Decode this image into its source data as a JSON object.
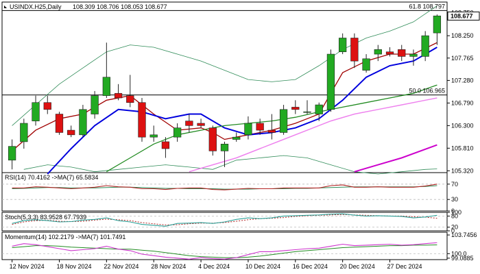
{
  "chart_data": {
    "type": "candlestick",
    "instrument": "USINDX.H25,Daily",
    "ohlc_header": "108.309 108.706 108.053 108.677",
    "current_price": "108.677",
    "fib_levels": [
      {
        "label": "61.8 108.797",
        "value": 108.797
      },
      {
        "label": "50.0 106.965",
        "value": 106.965
      }
    ],
    "price_axis": {
      "ticks": [
        "108.750",
        "108.250",
        "107.765",
        "107.280",
        "106.790",
        "106.300",
        "105.810",
        "105.320"
      ],
      "ylim": [
        105.28,
        108.98
      ]
    },
    "x_axis": {
      "labels": [
        {
          "text": "12 Nov 2024",
          "index": 0
        },
        {
          "text": "18 Nov 2024",
          "index": 4
        },
        {
          "text": "22 Nov 2024",
          "index": 8
        },
        {
          "text": "28 Nov 2024",
          "index": 12
        },
        {
          "text": "4 Dec 2024",
          "index": 16
        },
        {
          "text": "10 Dec 2024",
          "index": 20
        },
        {
          "text": "16 Dec 2024",
          "index": 24
        },
        {
          "text": "20 Dec 2024",
          "index": 28
        },
        {
          "text": "27 Dec 2024",
          "index": 32
        }
      ]
    },
    "candles": [
      {
        "o": 105.55,
        "h": 106.0,
        "l": 105.35,
        "c": 105.85
      },
      {
        "o": 105.95,
        "h": 106.45,
        "l": 105.8,
        "c": 106.35
      },
      {
        "o": 106.4,
        "h": 106.95,
        "l": 106.3,
        "c": 106.8
      },
      {
        "o": 106.8,
        "h": 106.95,
        "l": 106.55,
        "c": 106.65
      },
      {
        "o": 106.55,
        "h": 106.6,
        "l": 106.1,
        "c": 106.15
      },
      {
        "o": 106.2,
        "h": 106.3,
        "l": 106.05,
        "c": 106.1
      },
      {
        "o": 106.1,
        "h": 106.75,
        "l": 106.05,
        "c": 106.65
      },
      {
        "o": 106.55,
        "h": 107.05,
        "l": 106.45,
        "c": 106.95
      },
      {
        "o": 106.95,
        "h": 108.1,
        "l": 106.9,
        "c": 107.35
      },
      {
        "o": 107.0,
        "h": 107.2,
        "l": 106.85,
        "c": 106.9
      },
      {
        "o": 106.95,
        "h": 107.4,
        "l": 106.7,
        "c": 106.8
      },
      {
        "o": 106.8,
        "h": 106.9,
        "l": 105.95,
        "c": 106.05
      },
      {
        "o": 106.05,
        "h": 106.3,
        "l": 105.95,
        "c": 106.1
      },
      {
        "o": 105.95,
        "h": 106.05,
        "l": 105.6,
        "c": 105.8
      },
      {
        "o": 106.05,
        "h": 106.35,
        "l": 105.95,
        "c": 106.25
      },
      {
        "o": 106.4,
        "h": 106.55,
        "l": 106.15,
        "c": 106.3
      },
      {
        "o": 106.35,
        "h": 106.45,
        "l": 106.25,
        "c": 106.3
      },
      {
        "o": 106.25,
        "h": 106.3,
        "l": 105.65,
        "c": 105.75
      },
      {
        "o": 105.75,
        "h": 105.95,
        "l": 105.4,
        "c": 105.9
      },
      {
        "o": 106.0,
        "h": 106.15,
        "l": 105.95,
        "c": 106.05
      },
      {
        "o": 106.1,
        "h": 106.5,
        "l": 106.0,
        "c": 106.35
      },
      {
        "o": 106.35,
        "h": 106.45,
        "l": 106.1,
        "c": 106.2
      },
      {
        "o": 106.2,
        "h": 106.55,
        "l": 106.0,
        "c": 106.15
      },
      {
        "o": 106.15,
        "h": 106.75,
        "l": 106.1,
        "c": 106.65
      },
      {
        "o": 106.7,
        "h": 106.85,
        "l": 106.55,
        "c": 106.65
      },
      {
        "o": 106.6,
        "h": 106.85,
        "l": 106.55,
        "c": 106.6
      },
      {
        "o": 106.55,
        "h": 106.8,
        "l": 106.4,
        "c": 106.75
      },
      {
        "o": 106.65,
        "h": 107.95,
        "l": 106.6,
        "c": 107.85
      },
      {
        "o": 107.9,
        "h": 108.3,
        "l": 107.85,
        "c": 108.2
      },
      {
        "o": 108.2,
        "h": 108.3,
        "l": 107.55,
        "c": 107.7
      },
      {
        "o": 107.5,
        "h": 107.85,
        "l": 107.45,
        "c": 107.75
      },
      {
        "o": 107.85,
        "h": 108.05,
        "l": 107.7,
        "c": 107.95
      },
      {
        "o": 107.9,
        "h": 108.0,
        "l": 107.8,
        "c": 107.85
      },
      {
        "o": 107.95,
        "h": 108.05,
        "l": 107.7,
        "c": 107.8
      },
      {
        "o": 107.8,
        "h": 107.95,
        "l": 107.6,
        "c": 107.85
      },
      {
        "o": 107.8,
        "h": 108.35,
        "l": 107.7,
        "c": 108.25
      },
      {
        "o": 108.31,
        "h": 108.71,
        "l": 108.05,
        "c": 108.68
      }
    ],
    "overlays": [
      {
        "name": "boll-upper",
        "color": "#2e8b57",
        "width": 0.8,
        "points": [
          [
            0,
            106.3
          ],
          [
            2,
            106.75
          ],
          [
            4,
            107.2
          ],
          [
            6,
            107.55
          ],
          [
            8,
            107.9
          ],
          [
            10,
            108.05
          ],
          [
            12,
            108.0
          ],
          [
            14,
            107.85
          ],
          [
            16,
            107.7
          ],
          [
            18,
            107.5
          ],
          [
            20,
            107.3
          ],
          [
            22,
            107.25
          ],
          [
            24,
            107.3
          ],
          [
            26,
            107.6
          ],
          [
            28,
            107.95
          ],
          [
            30,
            108.2
          ],
          [
            32,
            108.35
          ],
          [
            34,
            108.55
          ],
          [
            36,
            108.9
          ]
        ]
      },
      {
        "name": "boll-lower",
        "color": "#2e8b57",
        "width": 0.8,
        "points": [
          [
            1,
            105.35
          ],
          [
            3,
            105.45
          ],
          [
            5,
            105.4
          ],
          [
            7,
            105.3
          ],
          [
            9,
            105.35
          ],
          [
            11,
            105.4
          ],
          [
            13,
            105.45
          ],
          [
            15,
            105.4
          ],
          [
            17,
            105.35
          ],
          [
            18,
            105.45
          ],
          [
            19,
            105.55
          ],
          [
            21,
            105.6
          ],
          [
            23,
            105.65
          ],
          [
            25,
            105.6
          ],
          [
            27,
            105.45
          ],
          [
            29,
            105.3
          ],
          [
            31,
            105.25
          ],
          [
            33,
            105.3
          ],
          [
            35,
            105.35
          ],
          [
            36,
            105.36
          ]
        ]
      },
      {
        "name": "ema-red",
        "color": "#a00000",
        "width": 1.3,
        "points": [
          [
            0,
            105.75
          ],
          [
            2,
            106.2
          ],
          [
            4,
            106.45
          ],
          [
            6,
            106.55
          ],
          [
            8,
            106.85
          ],
          [
            10,
            106.95
          ],
          [
            12,
            106.55
          ],
          [
            14,
            106.2
          ],
          [
            16,
            106.25
          ],
          [
            17,
            106.15
          ],
          [
            18,
            106.0
          ],
          [
            20,
            106.1
          ],
          [
            22,
            106.2
          ],
          [
            24,
            106.35
          ],
          [
            25,
            106.45
          ],
          [
            26,
            106.55
          ],
          [
            27,
            107.0
          ],
          [
            28,
            107.45
          ],
          [
            30,
            107.7
          ],
          [
            32,
            107.85
          ],
          [
            34,
            107.85
          ],
          [
            36,
            108.1
          ]
        ]
      },
      {
        "name": "ema-blue",
        "color": "#0000dd",
        "width": 2.0,
        "points": [
          [
            3,
            105.25
          ],
          [
            5,
            105.8
          ],
          [
            7,
            106.3
          ],
          [
            9,
            106.65
          ],
          [
            11,
            106.6
          ],
          [
            13,
            106.45
          ],
          [
            15,
            106.55
          ],
          [
            16,
            106.55
          ],
          [
            17,
            106.4
          ],
          [
            18,
            106.25
          ],
          [
            20,
            106.1
          ],
          [
            22,
            106.15
          ],
          [
            24,
            106.25
          ],
          [
            26,
            106.45
          ],
          [
            28,
            106.85
          ],
          [
            30,
            107.35
          ],
          [
            32,
            107.6
          ],
          [
            34,
            107.7
          ],
          [
            36,
            108.0
          ]
        ]
      },
      {
        "name": "sma-green",
        "color": "#228b22",
        "width": 1.3,
        "points": [
          [
            8,
            105.3
          ],
          [
            10,
            105.6
          ],
          [
            12,
            105.9
          ],
          [
            14,
            106.1
          ],
          [
            16,
            106.2
          ],
          [
            18,
            106.3
          ],
          [
            20,
            106.35
          ],
          [
            22,
            106.4
          ],
          [
            24,
            106.48
          ],
          [
            26,
            106.6
          ],
          [
            28,
            106.7
          ],
          [
            30,
            106.8
          ],
          [
            32,
            106.9
          ],
          [
            34,
            107.0
          ],
          [
            36,
            107.18
          ]
        ]
      },
      {
        "name": "sma-magenta",
        "color": "#ee82ee",
        "width": 1.5,
        "points": [
          [
            15,
            105.3
          ],
          [
            17,
            105.45
          ],
          [
            19,
            105.6
          ],
          [
            21,
            105.8
          ],
          [
            23,
            106.0
          ],
          [
            25,
            106.2
          ],
          [
            27,
            106.4
          ],
          [
            29,
            106.55
          ],
          [
            31,
            106.65
          ],
          [
            33,
            106.75
          ],
          [
            35,
            106.85
          ],
          [
            36,
            106.9
          ]
        ]
      },
      {
        "name": "sma-magenta-long",
        "color": "#cc00cc",
        "width": 2.0,
        "points": [
          [
            29,
            105.3
          ],
          [
            31,
            105.45
          ],
          [
            33,
            105.6
          ],
          [
            36,
            105.88
          ]
        ]
      }
    ],
    "rsi": {
      "label": "RSI(14) 70.4162 ->MA(7) 65.5834",
      "ticks": [
        "70",
        "30",
        "0"
      ],
      "ylim": [
        0,
        100
      ],
      "levels": [
        70,
        30
      ],
      "rsi_values": [
        60,
        60,
        63,
        62,
        60,
        58,
        60,
        62,
        66,
        63,
        62,
        58,
        58,
        56,
        59,
        60,
        60,
        56,
        55,
        57,
        59,
        58,
        58,
        60,
        60,
        60,
        60,
        66,
        68,
        62,
        62,
        63,
        62,
        62,
        62,
        65,
        70
      ],
      "ma_values": [
        58,
        59,
        60,
        61,
        61,
        60,
        60,
        60,
        61,
        62,
        62,
        61,
        60,
        59,
        59,
        58,
        58,
        58,
        57,
        57,
        57,
        58,
        58,
        58,
        59,
        59,
        60,
        61,
        62,
        63,
        63,
        63,
        63,
        63,
        63,
        64,
        66
      ]
    },
    "stoch": {
      "label": "Stoch(5,3,3) 83.9528 67.7939",
      "ticks": [
        "100",
        "80",
        "20",
        "0"
      ],
      "ylim": [
        0,
        100
      ],
      "levels": [
        80,
        20
      ],
      "k_values": [
        40,
        55,
        60,
        55,
        48,
        50,
        58,
        62,
        70,
        55,
        48,
        35,
        30,
        25,
        40,
        42,
        45,
        40,
        48,
        62,
        70,
        66,
        70,
        80,
        82,
        84,
        86,
        90,
        92,
        85,
        80,
        82,
        80,
        78,
        70,
        75,
        84
      ],
      "d_values": [
        35,
        48,
        55,
        57,
        52,
        50,
        52,
        58,
        63,
        60,
        55,
        45,
        38,
        32,
        33,
        38,
        42,
        42,
        45,
        52,
        60,
        66,
        68,
        72,
        78,
        82,
        84,
        86,
        88,
        86,
        84,
        82,
        80,
        80,
        76,
        74,
        68
      ]
    },
    "momentum": {
      "label": "Momentum(14) 102.2179 ->MA(7) 101.7491",
      "ticks": [
        "103.7456",
        "100.0",
        "99.0885"
      ],
      "ylim": [
        98.8,
        104.3
      ],
      "levels": [
        100.0
      ],
      "mom_values": [
        101.5,
        102.0,
        101.8,
        101.4,
        101.0,
        100.6,
        100.8,
        101.0,
        101.5,
        100.9,
        100.6,
        99.9,
        99.6,
        99.3,
        99.1,
        98.9,
        99.2,
        99.0,
        98.9,
        99.2,
        99.8,
        100.4,
        100.4,
        100.6,
        100.8,
        101.0,
        101.1,
        101.5,
        101.9,
        101.6,
        101.7,
        101.8,
        101.9,
        101.7,
        101.8,
        102.0,
        102.2
      ],
      "ma_values": [
        101.2,
        101.4,
        101.6,
        101.6,
        101.5,
        101.3,
        101.2,
        101.1,
        101.0,
        100.9,
        100.9,
        100.7,
        100.5,
        100.2,
        99.9,
        99.6,
        99.4,
        99.3,
        99.2,
        99.2,
        99.3,
        99.5,
        99.8,
        100.1,
        100.4,
        100.6,
        100.8,
        101.0,
        101.2,
        101.3,
        101.4,
        101.5,
        101.6,
        101.6,
        101.7,
        101.7,
        101.75
      ]
    }
  }
}
